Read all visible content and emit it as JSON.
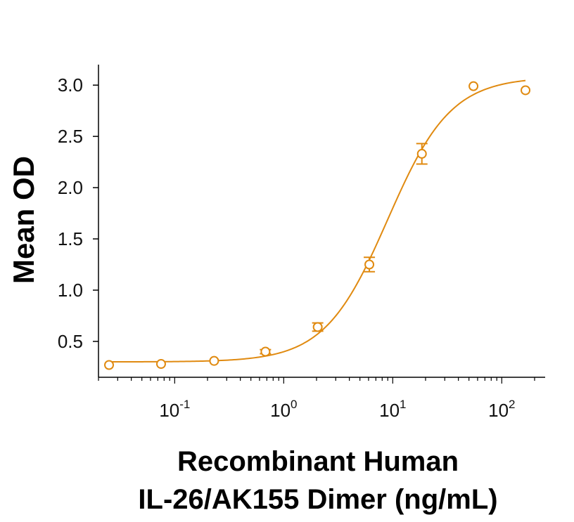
{
  "chart_data": {
    "type": "scatter",
    "ylabel": "Mean OD",
    "xlabel_line1": "Recombinant Human",
    "xlabel_line2": "IL-26/AK155 Dimer (ng/mL)",
    "x_scale": "log",
    "xlim": [
      0.02,
      250
    ],
    "ylim": [
      0.15,
      3.2
    ],
    "y_ticks": [
      "0.5",
      "1.0",
      "1.5",
      "2.0",
      "2.5",
      "3.0"
    ],
    "x_ticks": [
      {
        "value": 0.1,
        "base": "10",
        "exp": "-1"
      },
      {
        "value": 1,
        "base": "10",
        "exp": "0"
      },
      {
        "value": 10,
        "base": "10",
        "exp": "1"
      },
      {
        "value": 100,
        "base": "10",
        "exp": "2"
      }
    ],
    "color": "#E08A10",
    "series": [
      {
        "points": [
          {
            "x": 0.025,
            "y": 0.27,
            "err": 0.0
          },
          {
            "x": 0.075,
            "y": 0.28,
            "err": 0.0
          },
          {
            "x": 0.23,
            "y": 0.31,
            "err": 0.0
          },
          {
            "x": 0.68,
            "y": 0.4,
            "err": 0.02
          },
          {
            "x": 2.05,
            "y": 0.64,
            "err": 0.04
          },
          {
            "x": 6.1,
            "y": 1.25,
            "err": 0.07
          },
          {
            "x": 18.5,
            "y": 2.33,
            "err": 0.1
          },
          {
            "x": 55,
            "y": 2.99,
            "err": 0.0
          },
          {
            "x": 165,
            "y": 2.95,
            "err": 0.0
          }
        ],
        "fit": {
          "model": "4PL",
          "bottom": 0.3,
          "top": 3.08,
          "ec50": 9.0,
          "hill": 1.5
        }
      }
    ]
  }
}
